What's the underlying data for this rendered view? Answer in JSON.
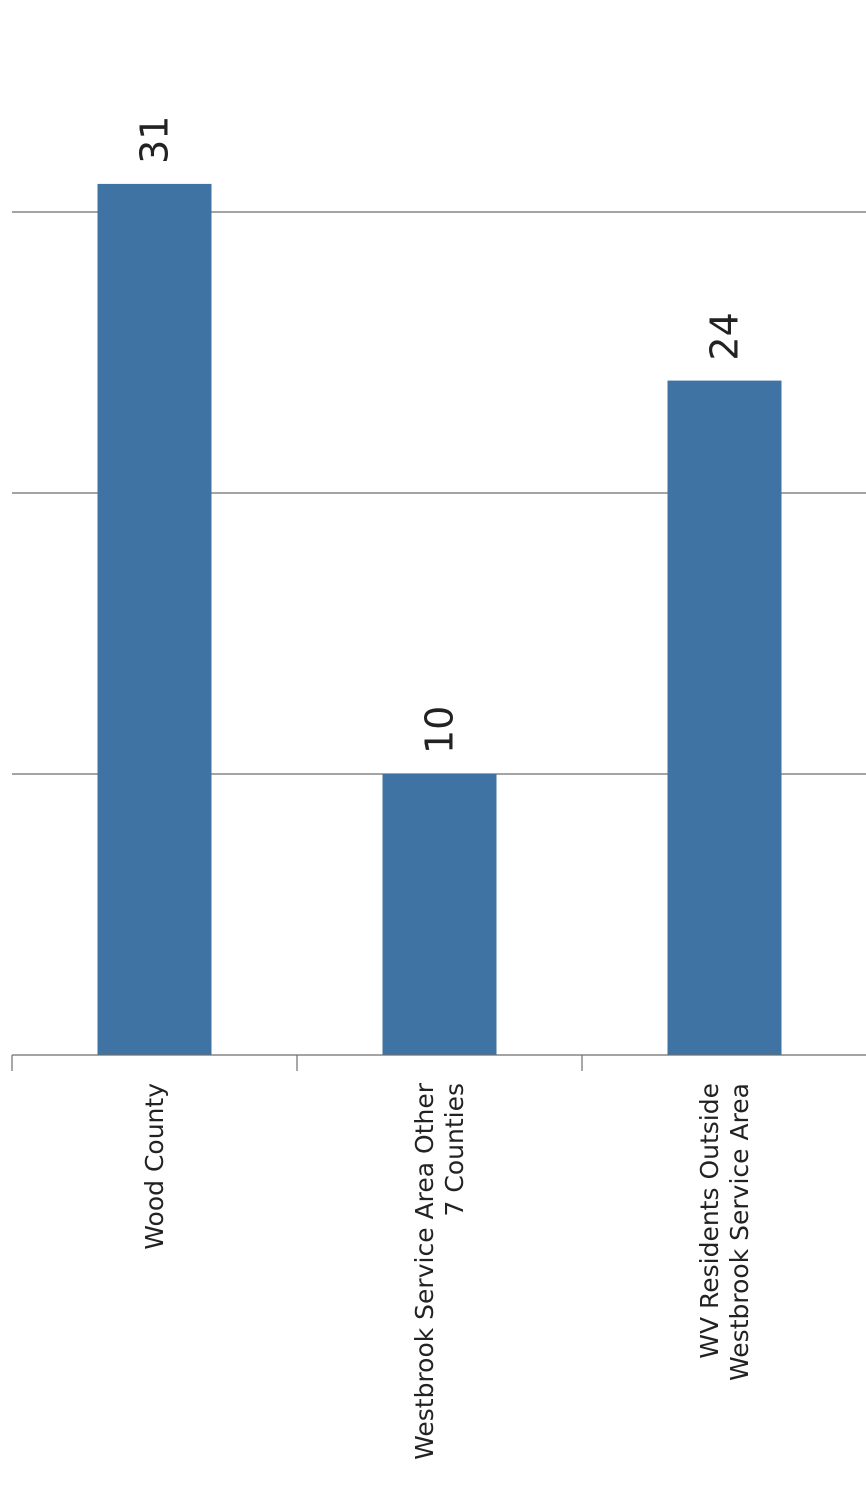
{
  "chart_data": {
    "type": "bar",
    "orientation": "rotated-90-clockwise",
    "categories": [
      [
        "Wood County"
      ],
      [
        "Westbrook Service Area Other",
        "7 Counties"
      ],
      [
        "WV Residents Outside",
        "Westbrook Service Area"
      ]
    ],
    "values": [
      31,
      10,
      24
    ],
    "data_labels": [
      "31",
      "10",
      "24"
    ],
    "ylim": [
      0,
      40
    ],
    "grid": true,
    "bar_color": "#3f73a3"
  }
}
